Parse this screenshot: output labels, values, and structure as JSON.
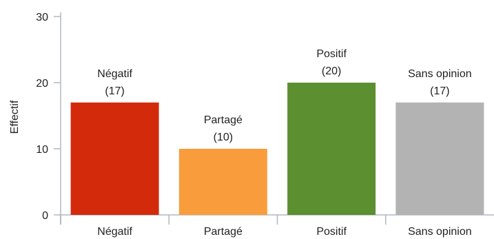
{
  "chart_data": {
    "type": "bar",
    "title": "",
    "xlabel": "",
    "ylabel": "Effectif",
    "ylim": [
      0,
      30
    ],
    "yticks": [
      0,
      10,
      20,
      30
    ],
    "grid": false,
    "categories": [
      "Négatif",
      "Partagé",
      "Positif",
      "Sans opinion"
    ],
    "values": [
      17,
      10,
      20,
      17
    ],
    "colors": [
      "#d42a0c",
      "#f99d3c",
      "#5b8f2f",
      "#b3b3b3"
    ],
    "data_labels": [
      {
        "name": "Négatif",
        "count": "(17)"
      },
      {
        "name": "Partagé",
        "count": "(10)"
      },
      {
        "name": "Positif",
        "count": "(20)"
      },
      {
        "name": "Sans opinion",
        "count": "(17)"
      }
    ]
  }
}
